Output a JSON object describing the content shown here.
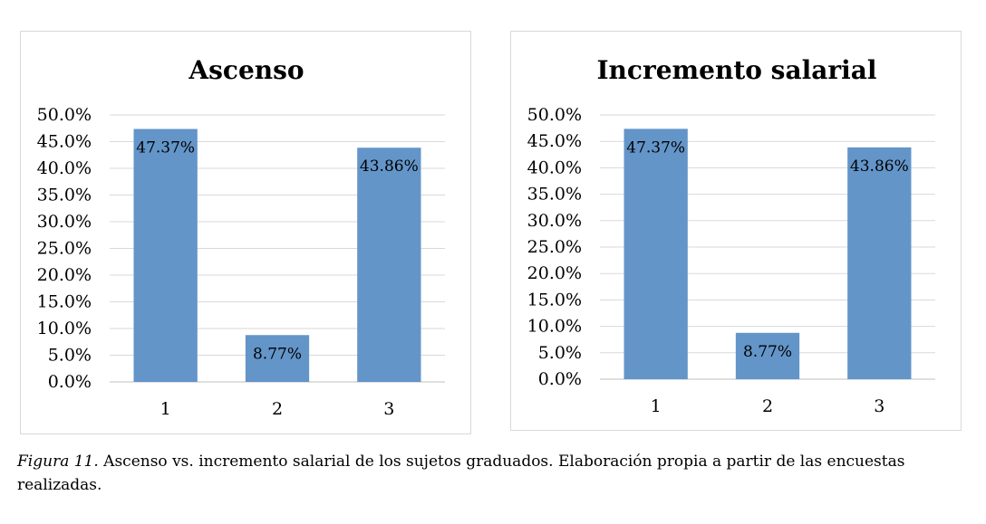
{
  "chart_data": [
    {
      "type": "bar",
      "title": "Ascenso",
      "categories": [
        "1",
        "2",
        "3"
      ],
      "values": [
        47.37,
        8.77,
        43.86
      ],
      "value_labels": [
        "47.37%",
        "8.77%",
        "43.86%"
      ],
      "ylim": [
        0,
        50
      ],
      "yticks": [
        "0.0%",
        "5.0%",
        "10.0%",
        "15.0%",
        "20.0%",
        "25.0%",
        "30.0%",
        "35.0%",
        "40.0%",
        "45.0%",
        "50.0%"
      ],
      "xlabel": "",
      "ylabel": "",
      "grid": true,
      "legend": "none",
      "bar_color": "#6395c9"
    },
    {
      "type": "bar",
      "title": "Incremento salarial",
      "categories": [
        "1",
        "2",
        "3"
      ],
      "values": [
        47.37,
        8.77,
        43.86
      ],
      "value_labels": [
        "47.37%",
        "8.77%",
        "43.86%"
      ],
      "ylim": [
        0,
        50
      ],
      "yticks": [
        "0.0%",
        "5.0%",
        "10.0%",
        "15.0%",
        "20.0%",
        "25.0%",
        "30.0%",
        "35.0%",
        "40.0%",
        "45.0%",
        "50.0%"
      ],
      "xlabel": "",
      "ylabel": "",
      "grid": true,
      "legend": "none",
      "bar_color": "#6395c9"
    }
  ],
  "caption": {
    "label": "Figura 11.",
    "text": " Ascenso vs. incremento salarial de los sujetos graduados. Elaboración propia a partir de las encuestas realizadas."
  }
}
